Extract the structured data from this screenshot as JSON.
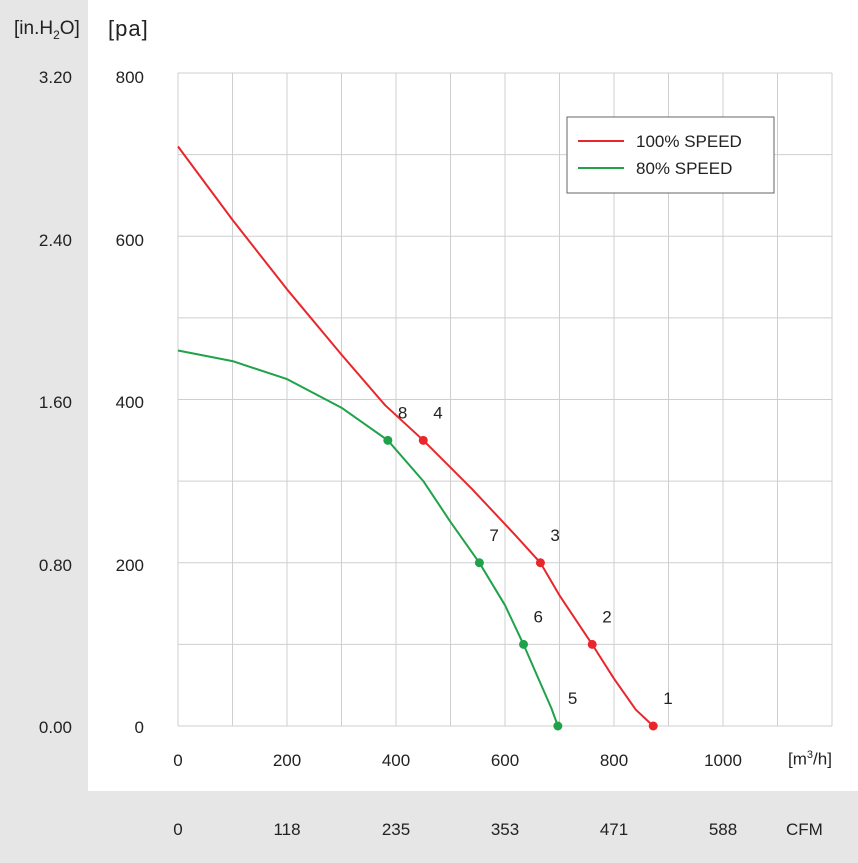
{
  "units": {
    "left_in": "[in.H2O]",
    "left_pa": "[pa]",
    "x_m3h": "[m3/h]",
    "x_cfm": "CFM"
  },
  "chart_data": {
    "type": "line",
    "title": "",
    "xlabel": "[m3/h]",
    "ylabel": "[pa]",
    "xlim": [
      0,
      1200
    ],
    "ylim": [
      0,
      800
    ],
    "grid": true,
    "legend_position": "top-right",
    "x_ticks": [
      "0",
      "200",
      "400",
      "600",
      "800",
      "1000"
    ],
    "y_ticks_pa": [
      "800",
      "600",
      "400",
      "200",
      "0"
    ],
    "y_ticks_inh2o": [
      "3.20",
      "2.40",
      "1.60",
      "0.80",
      "0.00"
    ],
    "x_ticks_cfm": [
      "0",
      "118",
      "235",
      "353",
      "471",
      "588"
    ],
    "series": [
      {
        "name": "100% SPEED",
        "color": "#e8262b",
        "curve": [
          [
            0,
            710
          ],
          [
            100,
            620
          ],
          [
            200,
            535
          ],
          [
            300,
            455
          ],
          [
            380,
            393
          ],
          [
            450,
            350
          ],
          [
            540,
            290
          ],
          [
            620,
            233
          ],
          [
            665,
            200
          ],
          [
            700,
            160
          ],
          [
            760,
            100
          ],
          [
            800,
            58
          ],
          [
            840,
            20
          ],
          [
            872,
            0
          ]
        ],
        "points": [
          {
            "label": "1",
            "x": 872,
            "y": 0
          },
          {
            "label": "2",
            "x": 760,
            "y": 100
          },
          {
            "label": "3",
            "x": 665,
            "y": 200
          },
          {
            "label": "4",
            "x": 450,
            "y": 350
          }
        ]
      },
      {
        "name": "80% SPEED",
        "color": "#1fa24a",
        "curve": [
          [
            0,
            460
          ],
          [
            100,
            447
          ],
          [
            200,
            425
          ],
          [
            300,
            390
          ],
          [
            385,
            350
          ],
          [
            450,
            300
          ],
          [
            500,
            250
          ],
          [
            553,
            200
          ],
          [
            600,
            148
          ],
          [
            634,
            100
          ],
          [
            660,
            60
          ],
          [
            685,
            22
          ],
          [
            697,
            0
          ]
        ],
        "points": [
          {
            "label": "5",
            "x": 697,
            "y": 0
          },
          {
            "label": "6",
            "x": 634,
            "y": 100
          },
          {
            "label": "7",
            "x": 553,
            "y": 200
          },
          {
            "label": "8",
            "x": 385,
            "y": 350
          }
        ]
      }
    ]
  }
}
